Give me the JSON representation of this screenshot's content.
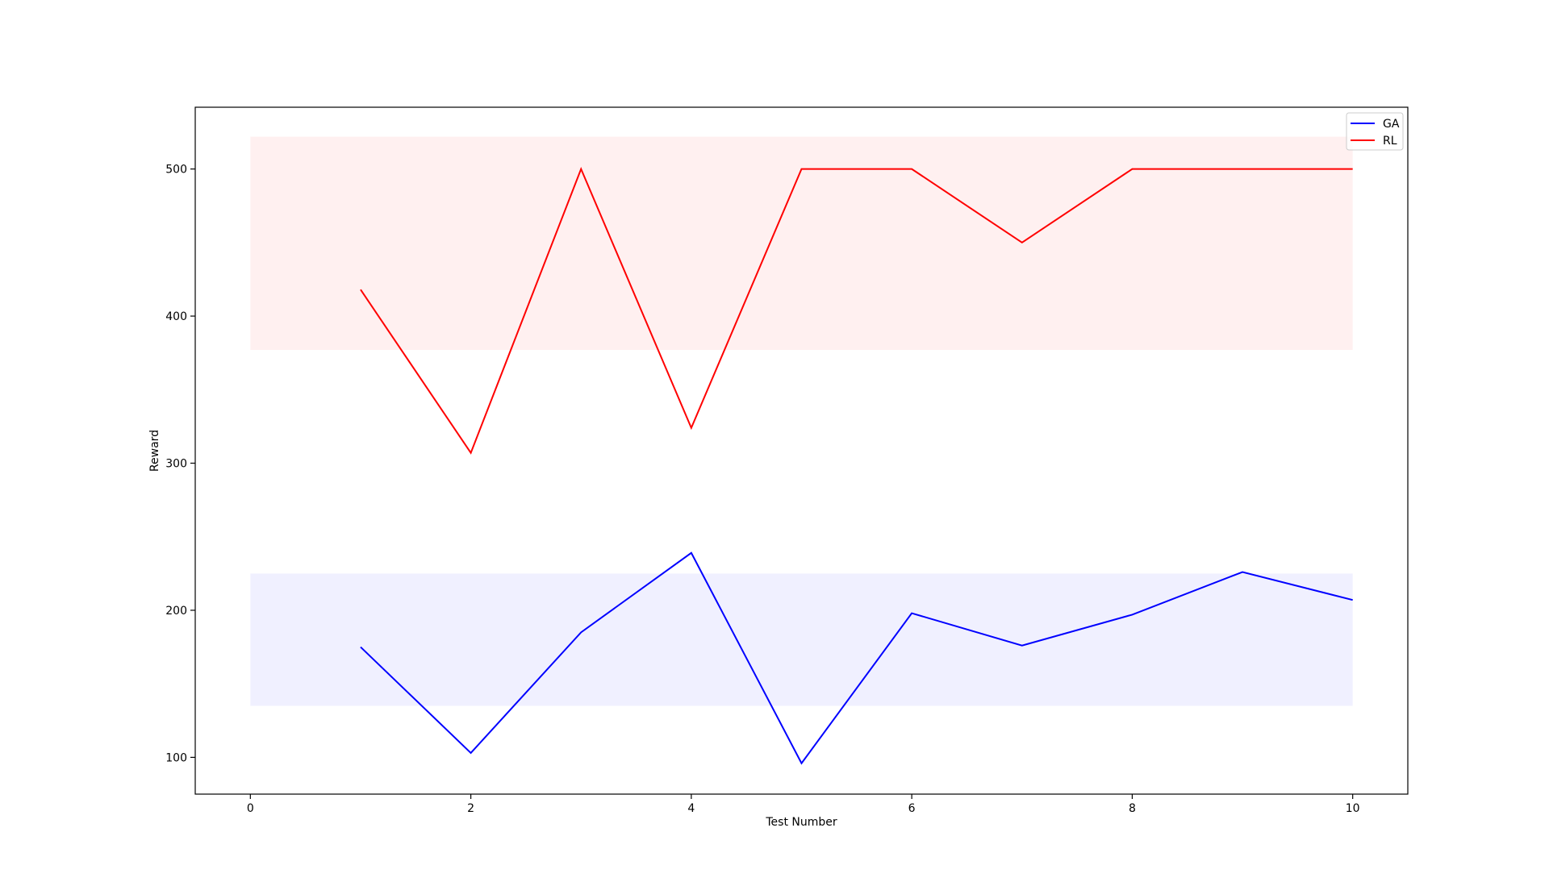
{
  "chart_data": {
    "type": "line",
    "title": "",
    "xlabel": "Test Number",
    "ylabel": "Reward",
    "xlim": [
      -0.5,
      10.5
    ],
    "ylim": [
      75,
      542
    ],
    "xticks": [
      0,
      2,
      4,
      6,
      8,
      10
    ],
    "yticks": [
      100,
      200,
      300,
      400,
      500
    ],
    "grid": false,
    "legend_position": "top-right",
    "series": [
      {
        "name": "GA",
        "color": "#0000ff",
        "x": [
          1,
          2,
          3,
          4,
          5,
          6,
          7,
          8,
          9,
          10
        ],
        "values": [
          175,
          103,
          185,
          239,
          96,
          198,
          176,
          197,
          226,
          207
        ]
      },
      {
        "name": "RL",
        "color": "#ff0000",
        "x": [
          1,
          2,
          3,
          4,
          5,
          6,
          7,
          8,
          9,
          10
        ],
        "values": [
          418,
          307,
          500,
          324,
          500,
          500,
          450,
          500,
          500,
          500
        ]
      }
    ],
    "bands": [
      {
        "series": "GA",
        "color": "#0000ff",
        "opacity": 0.06,
        "x": [
          0,
          10
        ],
        "y": [
          135,
          225
        ]
      },
      {
        "series": "RL",
        "color": "#ff0000",
        "opacity": 0.06,
        "x": [
          0,
          10
        ],
        "y": [
          377,
          522
        ]
      }
    ]
  }
}
